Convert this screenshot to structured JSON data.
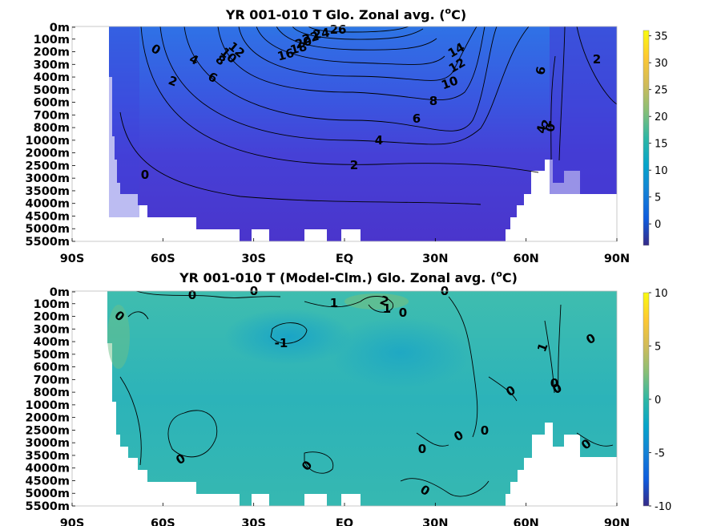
{
  "chart_data": [
    {
      "type": "heatmap",
      "title": "YR 001-010 T Glo. Zonal avg. (",
      "title_sup": "o",
      "title_tail": "C)",
      "x_ticks": [
        "90S",
        "60S",
        "30S",
        "EQ",
        "30N",
        "60N",
        "90N"
      ],
      "x_range": [
        -90,
        90
      ],
      "y_ticks": [
        "0m",
        "100m",
        "200m",
        "300m",
        "400m",
        "500m",
        "600m",
        "700m",
        "800m",
        "1000m",
        "2000m",
        "2500m",
        "3000m",
        "3500m",
        "4000m",
        "4500m",
        "5000m",
        "5500m"
      ],
      "colorbar": {
        "range": [
          -4,
          36
        ],
        "ticks": [
          "35",
          "30",
          "25",
          "20",
          "15",
          "10",
          "5",
          "0"
        ]
      },
      "colormap": "parula",
      "contour_labels": [
        "0",
        "4",
        "2",
        "6",
        "8",
        "10",
        "12",
        "16",
        "18",
        "20",
        "22",
        "24",
        "26",
        "14",
        "12",
        "10",
        "8",
        "6",
        "4",
        "2",
        "0",
        "6",
        "4",
        "2",
        "0",
        "2",
        "0"
      ],
      "ocean_mask": [
        {
          "lat": -78,
          "depth_index": 0
        },
        {
          "lat": -78,
          "depth_index": 12
        },
        {
          "lat": -76,
          "depth_index": 13
        },
        {
          "lat": -73,
          "depth_index": 14
        },
        {
          "lat": -70,
          "depth_index": 15
        },
        {
          "lat": -66,
          "depth_index": 16
        },
        {
          "lat": -55,
          "depth_index": 17
        },
        {
          "lat": 50,
          "depth_index": 17
        },
        {
          "lat": 51,
          "depth_index": 16
        },
        {
          "lat": 52,
          "depth_index": 15
        },
        {
          "lat": 58,
          "depth_index": 14
        },
        {
          "lat": 62,
          "depth_index": 12
        },
        {
          "lat": 66,
          "depth_index": 12
        },
        {
          "lat": 68,
          "depth_index": 13
        },
        {
          "lat": 90,
          "depth_index": 13
        },
        {
          "lat": 90,
          "depth_index": 0
        }
      ]
    },
    {
      "type": "heatmap",
      "title": "YR 001-010 T (Model-Clm.) Glo. Zonal avg. (",
      "title_sup": "o",
      "title_tail": "C)",
      "x_ticks": [
        "90S",
        "60S",
        "30S",
        "EQ",
        "30N",
        "60N",
        "90N"
      ],
      "x_range": [
        -90,
        90
      ],
      "y_ticks": [
        "0m",
        "100m",
        "200m",
        "300m",
        "400m",
        "500m",
        "600m",
        "700m",
        "800m",
        "1000m",
        "2000m",
        "2500m",
        "3000m",
        "3500m",
        "4000m",
        "4500m",
        "5000m",
        "5500m"
      ],
      "colorbar": {
        "range": [
          -10,
          10
        ],
        "ticks": [
          "10",
          "5",
          "0",
          "-5",
          "-10"
        ]
      },
      "colormap": "parula",
      "contour_labels": [
        "0",
        "0",
        "0",
        "1",
        "2",
        "1",
        "0",
        "0",
        "-1",
        "1",
        "0",
        "0",
        "0",
        "0",
        "0",
        "0",
        "0",
        "0",
        "0",
        "0",
        "0"
      ]
    }
  ]
}
